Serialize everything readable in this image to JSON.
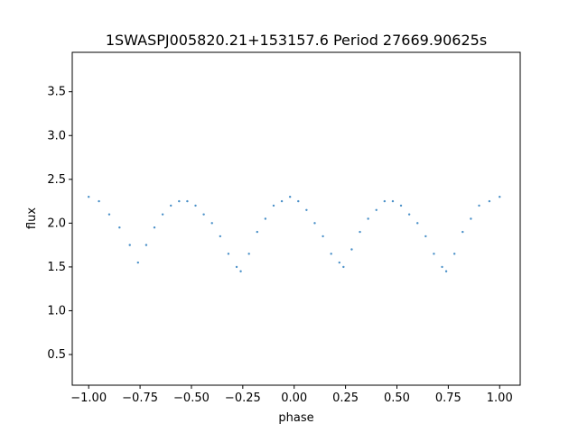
{
  "chart_data": {
    "type": "scatter",
    "title": "1SWASPJ005820.21+153157.6 Period 27669.90625s",
    "xlabel": "phase",
    "ylabel": "flux",
    "xlim": [
      -1.08,
      1.1
    ],
    "ylim": [
      0.15,
      3.95
    ],
    "xticks": [
      -1.0,
      -0.75,
      -0.5,
      -0.25,
      0.0,
      0.25,
      0.5,
      0.75,
      1.0
    ],
    "xtick_labels": [
      "−1.00",
      "−0.75",
      "−0.50",
      "−0.25",
      "0.00",
      "0.25",
      "0.50",
      "0.75",
      "1.00"
    ],
    "yticks": [
      0.5,
      1.0,
      1.5,
      2.0,
      2.5,
      3.0,
      3.5
    ],
    "ytick_labels": [
      "0.5",
      "1.0",
      "1.5",
      "2.0",
      "2.5",
      "3.0",
      "3.5"
    ],
    "grid": false,
    "marker_color": "#4a90c8",
    "series": [
      {
        "x": [
          -1.0,
          -0.95,
          -0.9,
          -0.85,
          -0.8,
          -0.76,
          -0.72,
          -0.68,
          -0.64,
          -0.6,
          -0.56,
          -0.52,
          -0.48,
          -0.44,
          -0.4,
          -0.36,
          -0.32,
          -0.28,
          -0.26,
          -0.22,
          -0.18,
          -0.14,
          -0.1,
          -0.06,
          -0.02,
          0.02,
          0.06,
          0.1,
          0.14,
          0.18,
          0.22,
          0.24,
          0.28,
          0.32,
          0.36,
          0.4,
          0.44,
          0.48,
          0.52,
          0.56,
          0.6,
          0.64,
          0.68,
          0.72,
          0.74,
          0.78,
          0.82,
          0.86,
          0.9,
          0.95,
          1.0
        ],
        "y": [
          2.3,
          2.25,
          2.1,
          1.95,
          1.75,
          1.55,
          1.75,
          1.95,
          2.1,
          2.2,
          2.25,
          2.25,
          2.2,
          2.1,
          2.0,
          1.85,
          1.65,
          1.5,
          1.45,
          1.65,
          1.9,
          2.05,
          2.2,
          2.25,
          2.3,
          2.25,
          2.15,
          2.0,
          1.85,
          1.65,
          1.55,
          1.5,
          1.7,
          1.9,
          2.05,
          2.15,
          2.25,
          2.25,
          2.2,
          2.1,
          2.0,
          1.85,
          1.65,
          1.5,
          1.45,
          1.65,
          1.9,
          2.05,
          2.2,
          2.25,
          2.3
        ]
      }
    ]
  }
}
